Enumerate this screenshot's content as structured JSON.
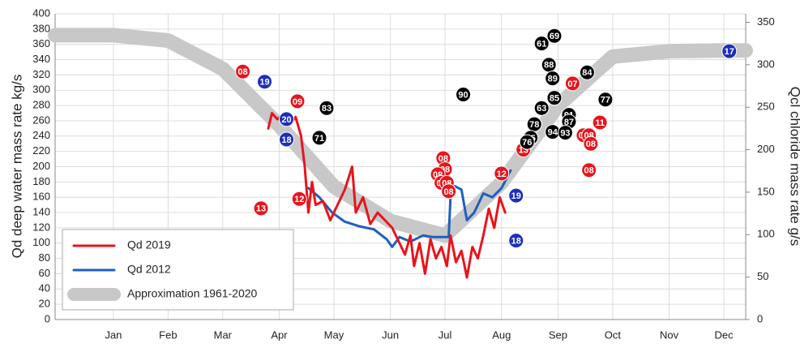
{
  "chart_data": {
    "type": "line",
    "y_label": "Qd deep water mass rate kg/s",
    "y2_label": "Qcl chloride mass rate g/s",
    "xlim": [
      -17,
      362
    ],
    "xticks": [
      {
        "value": 15,
        "label": "Jan"
      },
      {
        "value": 45,
        "label": "Feb"
      },
      {
        "value": 75,
        "label": "Mar"
      },
      {
        "value": 106,
        "label": "Apr"
      },
      {
        "value": 136,
        "label": "May"
      },
      {
        "value": 167,
        "label": "Jun"
      },
      {
        "value": 197,
        "label": "Jul"
      },
      {
        "value": 228,
        "label": "Aug"
      },
      {
        "value": 259,
        "label": "Sep"
      },
      {
        "value": 289,
        "label": "Oct"
      },
      {
        "value": 320,
        "label": "Nov"
      },
      {
        "value": 350,
        "label": "Dec"
      }
    ],
    "ylim": [
      0,
      400
    ],
    "yticks": [
      0,
      20,
      40,
      60,
      80,
      100,
      120,
      140,
      160,
      180,
      200,
      220,
      240,
      260,
      280,
      300,
      320,
      340,
      360,
      380,
      400
    ],
    "y2lim": [
      0,
      360
    ],
    "y2ticks": [
      0,
      50,
      100,
      150,
      200,
      250,
      300,
      350
    ],
    "grid": true,
    "legend": "lower left",
    "series": [
      {
        "name": "Approximation 1961-2020",
        "color": "#c8c8c8",
        "width": 18,
        "x": [
          -17,
          15,
          45,
          75,
          106,
          136,
          167,
          197,
          228,
          259,
          289,
          320,
          350,
          362
        ],
        "values": [
          372,
          372,
          365,
          328,
          254,
          174,
          129,
          110,
          179,
          280,
          344,
          351,
          352,
          352
        ]
      },
      {
        "name": "Qd 2012",
        "color": "#1f5fbf",
        "width": 3,
        "x": [
          122,
          128,
          135,
          142,
          150,
          158,
          165,
          168,
          172,
          178,
          185,
          190,
          199,
          200,
          202,
          206,
          209,
          213,
          218,
          223,
          228,
          233
        ],
        "values": [
          172,
          160,
          140,
          128,
          122,
          118,
          105,
          95,
          108,
          102,
          110,
          108,
          108,
          160,
          175,
          170,
          130,
          140,
          165,
          160,
          172,
          195
        ]
      },
      {
        "name": "Qd 2019",
        "color": "#e8141c",
        "width": 3,
        "x": [
          100,
          102,
          105,
          108,
          112,
          115,
          118,
          120,
          122,
          124,
          126,
          130,
          134,
          138,
          142,
          146,
          148,
          152,
          156,
          160,
          164,
          168,
          172,
          175,
          178,
          180,
          183,
          186,
          189,
          192,
          195,
          198,
          200,
          203,
          206,
          209,
          212,
          215,
          218,
          221,
          224,
          227,
          230
        ],
        "values": [
          250,
          270,
          262,
          268,
          255,
          265,
          240,
          200,
          140,
          180,
          150,
          155,
          130,
          150,
          170,
          200,
          140,
          160,
          125,
          140,
          130,
          120,
          100,
          85,
          110,
          70,
          100,
          60,
          105,
          80,
          95,
          70,
          110,
          75,
          90,
          55,
          95,
          80,
          110,
          145,
          120,
          160,
          140
        ]
      }
    ],
    "markers": [
      {
        "color": "#e8141c",
        "axis": "y2",
        "x": [
          86,
          116,
          117,
          96,
          196,
          197,
          193,
          195,
          198,
          199,
          228,
          240,
          267,
          273,
          276,
          277,
          282,
          276
        ],
        "values": [
          292,
          257,
          142,
          131,
          190,
          177,
          171,
          161,
          161,
          151,
          172,
          200,
          278,
          217,
          217,
          207,
          232,
          176
        ],
        "labels": [
          "08",
          "09",
          "12",
          "13",
          "08",
          "08",
          "08",
          "08",
          "08",
          "08",
          "12",
          "13",
          "07",
          "08",
          "08",
          "08",
          "11",
          "08"
        ]
      },
      {
        "color": "#1c2fb8",
        "axis": "y2",
        "x": [
          98,
          110,
          110,
          236,
          236,
          353
        ],
        "values": [
          280,
          236,
          212,
          146,
          93,
          316
        ],
        "labels": [
          "19",
          "20",
          "18",
          "19",
          "18",
          "17"
        ]
      },
      {
        "color": "#000000",
        "axis": "y2",
        "x": [
          132,
          128,
          207,
          250,
          257,
          254,
          256,
          275,
          257,
          250,
          285,
          265,
          265,
          246,
          244,
          242,
          256,
          263
        ],
        "values": [
          249,
          214,
          265,
          325,
          334,
          300,
          284,
          291,
          261,
          249,
          259,
          241,
          233,
          230,
          214,
          209,
          221,
          220
        ],
        "labels": [
          "83",
          "71",
          "90",
          "61",
          "69",
          "88",
          "89",
          "84",
          "85",
          "63",
          "77",
          "91",
          "87",
          "78",
          "75",
          "76",
          "94",
          "93"
        ]
      }
    ]
  }
}
